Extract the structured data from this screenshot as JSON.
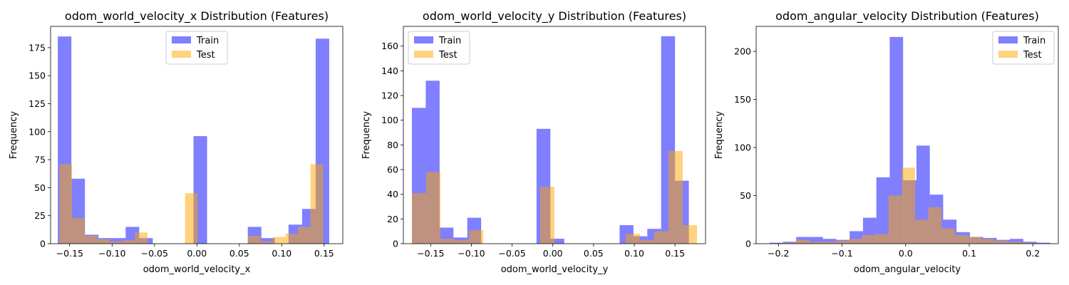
{
  "chart_data": [
    {
      "type": "bar",
      "title": "odom_world_velocity_x Distribution (Features)",
      "xlabel": "odom_world_velocity_x",
      "ylabel": "Frequency",
      "xlim": [
        -0.1725,
        0.172
      ],
      "ylim": [
        0,
        194
      ],
      "xticks": [
        -0.15,
        -0.1,
        -0.05,
        0.0,
        0.05,
        0.1,
        0.15
      ],
      "xtick_labels": [
        "−0.15",
        "−0.10",
        "−0.05",
        "0.00",
        "0.05",
        "0.10",
        "0.15"
      ],
      "yticks": [
        0,
        25,
        50,
        75,
        100,
        125,
        150,
        175
      ],
      "ytick_labels": [
        "0",
        "25",
        "50",
        "75",
        "100",
        "125",
        "150",
        "175"
      ],
      "legend": "top-center",
      "series": [
        {
          "name": "Train",
          "color": "#0000ff",
          "bin_edges": [
            -0.164,
            -0.148,
            -0.132,
            -0.116,
            -0.1,
            -0.084,
            -0.068,
            -0.052,
            -0.036,
            -0.02,
            -0.004,
            0.012,
            0.028,
            0.044,
            0.06,
            0.076,
            0.092,
            0.108,
            0.124,
            0.14,
            0.156,
            0.172
          ],
          "values": [
            185,
            58,
            8,
            5,
            5,
            15,
            5,
            0,
            0,
            0,
            96,
            0,
            0,
            0,
            15,
            5,
            0,
            17,
            31,
            183,
            0
          ]
        },
        {
          "name": "Test",
          "color": "#ffa500",
          "bin_edges": [
            -0.162,
            -0.1472,
            -0.1324,
            -0.1176,
            -0.1028,
            -0.088,
            -0.0732,
            -0.0584,
            -0.0436,
            -0.0288,
            -0.014,
            0.0008,
            0.0156,
            0.0304,
            0.0452,
            0.06,
            0.0748,
            0.0896,
            0.1044,
            0.1192,
            0.134,
            0.1488,
            0.1636
          ],
          "values": [
            71,
            23,
            7,
            4,
            2,
            3,
            10,
            0,
            0,
            0,
            45,
            0,
            0,
            0,
            0,
            7,
            2,
            6,
            9,
            15,
            71,
            0
          ]
        }
      ]
    },
    {
      "type": "bar",
      "title": "odom_world_velocity_y Distribution (Features)",
      "xlabel": "odom_world_velocity_y",
      "ylabel": "Frequency",
      "xlim": [
        -0.1835,
        0.1875
      ],
      "ylim": [
        0,
        176
      ],
      "xticks": [
        -0.15,
        -0.1,
        -0.05,
        0.0,
        0.05,
        0.1,
        0.15
      ],
      "xtick_labels": [
        "−0.15",
        "−0.10",
        "−0.05",
        "0.00",
        "0.05",
        "0.10",
        "0.15"
      ],
      "yticks": [
        0,
        20,
        40,
        60,
        80,
        100,
        120,
        140,
        160
      ],
      "ytick_labels": [
        "0",
        "20",
        "40",
        "60",
        "80",
        "100",
        "120",
        "140",
        "160"
      ],
      "legend": "top-left",
      "series": [
        {
          "name": "Train",
          "color": "#0000ff",
          "bin_edges": [
            -0.173,
            -0.156,
            -0.139,
            -0.122,
            -0.105,
            -0.088,
            -0.071,
            -0.054,
            -0.037,
            -0.02,
            -0.003,
            0.014,
            0.031,
            0.048,
            0.065,
            0.082,
            0.099,
            0.116,
            0.133,
            0.15,
            0.167
          ],
          "values": [
            110,
            132,
            13,
            5,
            21,
            0,
            0,
            0,
            0,
            93,
            4,
            0,
            0,
            0,
            0,
            15,
            6,
            12,
            168,
            51
          ]
        },
        {
          "name": "Test",
          "color": "#ffa500",
          "bin_edges": [
            -0.173,
            -0.1555,
            -0.138,
            -0.1205,
            -0.103,
            -0.0855,
            -0.068,
            -0.0505,
            -0.033,
            -0.0155,
            0.002,
            0.0195,
            0.037,
            0.0545,
            0.072,
            0.0895,
            0.107,
            0.1245,
            0.142,
            0.1595,
            0.177
          ],
          "values": [
            41,
            58,
            4,
            3,
            11,
            0,
            0,
            0,
            0,
            46,
            0,
            0,
            0,
            0,
            0,
            8,
            3,
            10,
            75,
            15
          ]
        }
      ]
    },
    {
      "type": "bar",
      "title": "odom_angular_velocity Distribution (Features)",
      "xlabel": "odom_angular_velocity",
      "ylabel": "Frequency",
      "xlim": [
        -0.235,
        0.24
      ],
      "ylim": [
        0,
        226
      ],
      "xticks": [
        -0.2,
        -0.1,
        0.0,
        0.1,
        0.2
      ],
      "xtick_labels": [
        "−0.2",
        "−0.1",
        "0.0",
        "0.1",
        "0.2"
      ],
      "yticks": [
        0,
        50,
        100,
        150,
        200
      ],
      "ytick_labels": [
        "0",
        "50",
        "100",
        "150",
        "200"
      ],
      "legend": "top-right",
      "series": [
        {
          "name": "Train",
          "color": "#0000ff",
          "bin_edges": [
            -0.214,
            -0.193,
            -0.172,
            -0.151,
            -0.13,
            -0.109,
            -0.088,
            -0.067,
            -0.046,
            -0.025,
            -0.004,
            0.017,
            0.038,
            0.059,
            0.08,
            0.101,
            0.122,
            0.143,
            0.164,
            0.185,
            0.206,
            0.227
          ],
          "values": [
            1,
            2,
            7,
            7,
            5,
            4,
            13,
            27,
            69,
            215,
            66,
            102,
            51,
            25,
            12,
            7,
            6,
            4,
            5,
            2,
            1
          ]
        },
        {
          "name": "Test",
          "color": "#ffa500",
          "bin_edges": [
            -0.214,
            -0.1932,
            -0.1724,
            -0.1516,
            -0.1308,
            -0.11,
            -0.0892,
            -0.0684,
            -0.0476,
            -0.0268,
            -0.006,
            0.0148,
            0.0356,
            0.0564,
            0.0772,
            0.098,
            0.1188,
            0.1396,
            0.1604,
            0.1812,
            0.202,
            0.2228
          ],
          "values": [
            0,
            1,
            4,
            2,
            2,
            3,
            5,
            9,
            10,
            50,
            79,
            25,
            38,
            16,
            9,
            7,
            5,
            3,
            2,
            1,
            0
          ]
        }
      ]
    }
  ]
}
